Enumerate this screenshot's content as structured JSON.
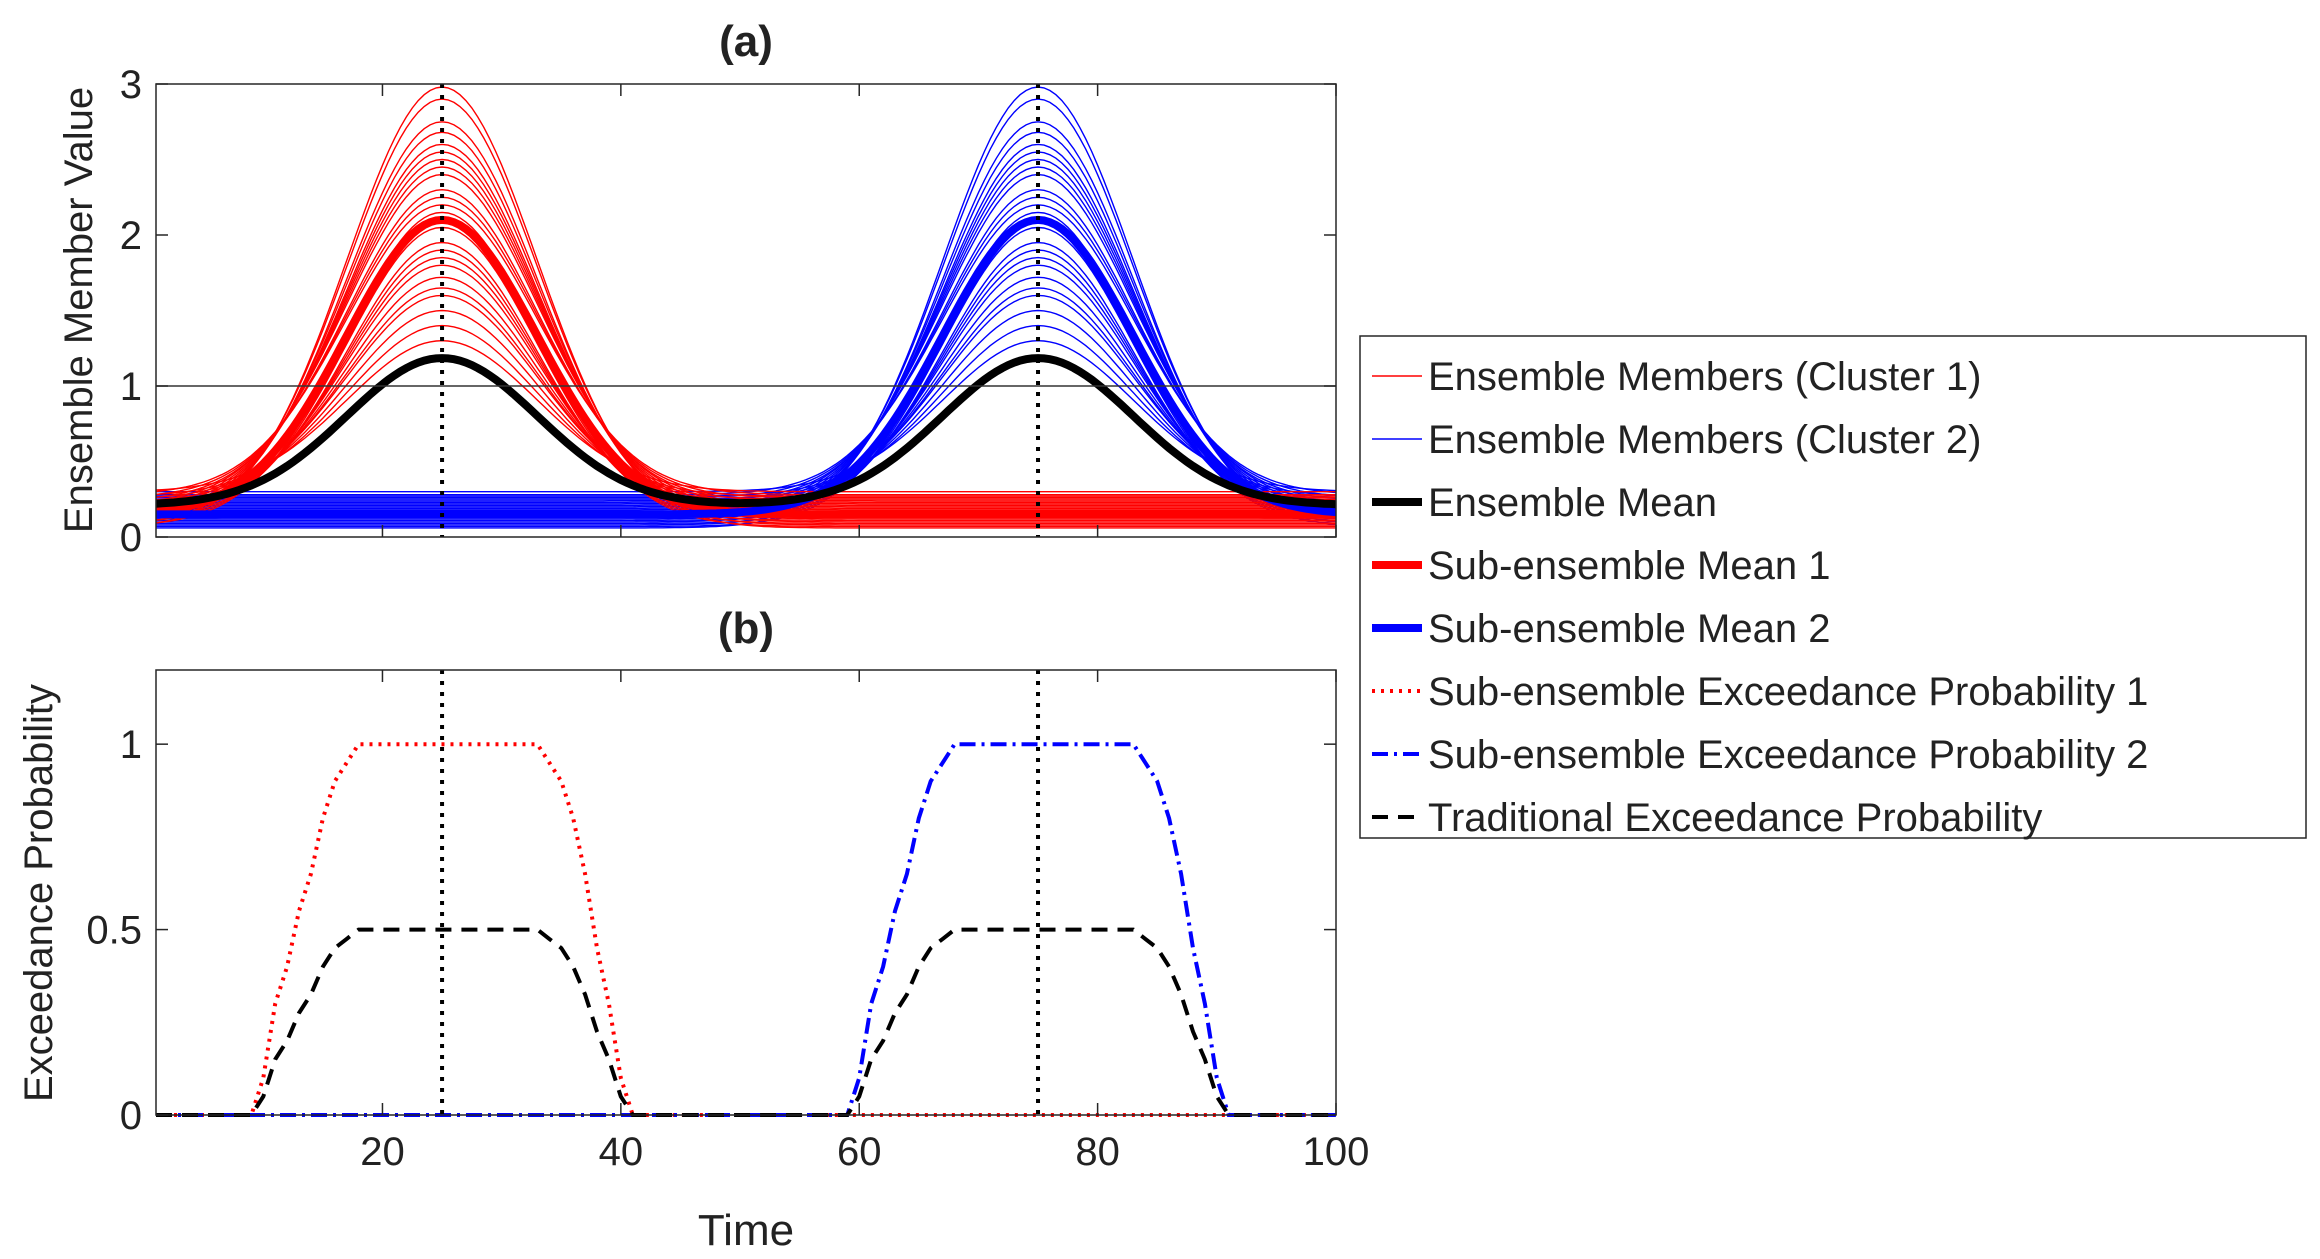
{
  "chart_data": [
    {
      "panel": "a",
      "type": "line",
      "title": "(a)",
      "xlabel": "",
      "ylabel": "Ensemble Member Value",
      "xlim": [
        1,
        100
      ],
      "ylim": [
        0,
        3
      ],
      "xticks": [
        20,
        40,
        60,
        80,
        100
      ],
      "xtick_labels_shown": false,
      "yticks": [
        0,
        1,
        2,
        3
      ],
      "ytick_labels": [
        "0",
        "1",
        "2",
        "3"
      ],
      "threshold_line": {
        "y": 1
      },
      "vertical_markers": [
        25,
        75
      ],
      "cluster_1": {
        "peak_time": 25,
        "width": 8,
        "baseline": 0.17,
        "member_peaks": [
          2.98,
          2.9,
          2.75,
          2.68,
          2.6,
          2.55,
          2.5,
          2.45,
          2.4,
          2.3,
          2.25,
          2.2,
          2.15,
          2.05,
          1.95,
          1.9,
          1.85,
          1.8,
          1.72,
          1.65,
          1.6,
          1.5,
          1.4,
          1.3
        ],
        "member_baselines": [
          0.06,
          0.08,
          0.1,
          0.12,
          0.14,
          0.16,
          0.18,
          0.2,
          0.22,
          0.24,
          0.26,
          0.28,
          0.07,
          0.09,
          0.11,
          0.13,
          0.15,
          0.17,
          0.19,
          0.21,
          0.23,
          0.25,
          0.27,
          0.3
        ]
      },
      "cluster_2": {
        "peak_time": 75,
        "width": 8,
        "baseline": 0.17,
        "member_peaks": [
          2.98,
          2.9,
          2.75,
          2.68,
          2.6,
          2.55,
          2.5,
          2.45,
          2.4,
          2.3,
          2.25,
          2.2,
          2.15,
          2.05,
          1.95,
          1.9,
          1.85,
          1.8,
          1.72,
          1.65,
          1.6,
          1.5,
          1.4,
          1.3
        ],
        "member_baselines": [
          0.06,
          0.08,
          0.1,
          0.12,
          0.14,
          0.16,
          0.18,
          0.2,
          0.22,
          0.24,
          0.26,
          0.28,
          0.07,
          0.09,
          0.11,
          0.13,
          0.15,
          0.17,
          0.19,
          0.21,
          0.23,
          0.25,
          0.27,
          0.3
        ]
      },
      "sub_ensemble_mean_1": {
        "peak_time": 25,
        "peak": 2.1,
        "baseline": 0.15
      },
      "sub_ensemble_mean_2": {
        "peak_time": 75,
        "peak": 2.1,
        "baseline": 0.15
      },
      "ensemble_mean": {
        "peaks_at": [
          25,
          75
        ],
        "peak": 1.12,
        "baseline": 0.17,
        "min_value": 0.22
      },
      "colors": {
        "cluster_1": "#ff0000",
        "cluster_2": "#0000ff",
        "ensemble_mean": "#000000"
      }
    },
    {
      "panel": "b",
      "type": "line",
      "title": "(b)",
      "xlabel": "Time",
      "ylabel": "Exceedance Probability",
      "xlim": [
        1,
        100
      ],
      "ylim": [
        0,
        1.2
      ],
      "xticks": [
        20,
        40,
        60,
        80,
        100
      ],
      "xtick_labels": [
        "20",
        "40",
        "60",
        "80",
        "100"
      ],
      "yticks": [
        0,
        0.5,
        1
      ],
      "ytick_labels": [
        "0",
        "0.5",
        "1"
      ],
      "vertical_markers": [
        25,
        75
      ],
      "series": [
        {
          "name": "Sub-ensemble Exceedance Probability  1",
          "color": "#ff0000",
          "style": "dotted",
          "x": [
            1,
            9,
            10,
            11,
            12,
            13,
            14,
            15,
            16,
            17,
            18,
            32,
            33,
            34,
            35,
            36,
            37,
            38,
            39,
            40,
            41,
            100
          ],
          "y": [
            0,
            0,
            0.1,
            0.3,
            0.4,
            0.55,
            0.65,
            0.8,
            0.9,
            0.95,
            1,
            1,
            1,
            0.95,
            0.9,
            0.8,
            0.65,
            0.45,
            0.3,
            0.1,
            0,
            0
          ]
        },
        {
          "name": "Sub-ensemble Exceedance Probability  2",
          "color": "#0000ff",
          "style": "dashdot",
          "x": [
            1,
            59,
            60,
            61,
            62,
            63,
            64,
            65,
            66,
            67,
            68,
            82,
            83,
            84,
            85,
            86,
            87,
            88,
            89,
            90,
            91,
            100
          ],
          "y": [
            0,
            0,
            0.1,
            0.3,
            0.4,
            0.55,
            0.65,
            0.8,
            0.9,
            0.95,
            1,
            1,
            1,
            0.95,
            0.9,
            0.8,
            0.65,
            0.45,
            0.3,
            0.1,
            0,
            0
          ]
        },
        {
          "name": "Traditional Exceedance Probability",
          "color": "#000000",
          "style": "dashed",
          "x": [
            1,
            9,
            10,
            11,
            12,
            13,
            14,
            15,
            16,
            17,
            18,
            32,
            33,
            34,
            35,
            36,
            37,
            38,
            39,
            40,
            41,
            59,
            60,
            61,
            62,
            63,
            64,
            65,
            66,
            67,
            68,
            82,
            83,
            84,
            85,
            86,
            87,
            88,
            89,
            90,
            91,
            100
          ],
          "y": [
            0,
            0,
            0.05,
            0.15,
            0.2,
            0.275,
            0.325,
            0.4,
            0.45,
            0.475,
            0.5,
            0.5,
            0.5,
            0.475,
            0.45,
            0.4,
            0.325,
            0.225,
            0.15,
            0.05,
            0,
            0,
            0.05,
            0.15,
            0.2,
            0.275,
            0.325,
            0.4,
            0.45,
            0.475,
            0.5,
            0.5,
            0.5,
            0.475,
            0.45,
            0.4,
            0.325,
            0.225,
            0.15,
            0.05,
            0,
            0
          ]
        }
      ]
    }
  ],
  "legend": {
    "placement": "right",
    "entries": [
      {
        "label": "Ensemble Members (Cluster 1)",
        "color": "#ff0000",
        "style": "solid-thin"
      },
      {
        "label": "Ensemble Members (Cluster 2)",
        "color": "#0000ff",
        "style": "solid-thin"
      },
      {
        "label": "Ensemble Mean",
        "color": "#000000",
        "style": "solid-thick"
      },
      {
        "label": "Sub-ensemble Mean 1",
        "color": "#ff0000",
        "style": "solid-thick"
      },
      {
        "label": "Sub-ensemble Mean 2",
        "color": "#0000ff",
        "style": "solid-thick"
      },
      {
        "label": "Sub-ensemble Exceedance Probability  1",
        "color": "#ff0000",
        "style": "dotted"
      },
      {
        "label": "Sub-ensemble Exceedance Probability  2",
        "color": "#0000ff",
        "style": "dashdot"
      },
      {
        "label": "Traditional Exceedance Probability",
        "color": "#000000",
        "style": "dashed"
      }
    ]
  }
}
